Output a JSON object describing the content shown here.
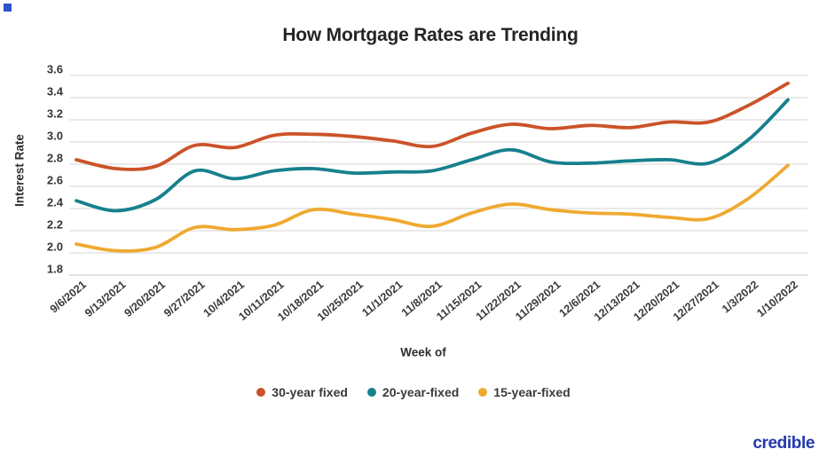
{
  "page": {
    "logo_text": "credible",
    "accent_square_color": "#2d52cc",
    "logo_color": "#2138b0",
    "background_color": "#ffffff"
  },
  "chart_data": {
    "type": "line",
    "title": "How Mortgage Rates are Trending",
    "xlabel": "Week of",
    "ylabel": "Interest Rate",
    "ylim": [
      1.8,
      3.6
    ],
    "ytick_step": 0.2,
    "ytick_labels": [
      "3.6",
      "3.4",
      "3.2",
      "3.0",
      "2.8",
      "2.6",
      "2.4",
      "2.2",
      "2.0",
      "1.8"
    ],
    "grid": true,
    "grid_color": "#dedede",
    "legend_position": "bottom",
    "categories": [
      "9/6/2021",
      "9/13/2021",
      "9/20/2021",
      "9/27/2021",
      "10/4/2021",
      "10/11/2021",
      "10/18/2021",
      "10/25/2021",
      "11/1/2021",
      "11/8/2021",
      "11/15/2021",
      "11/22/2021",
      "11/29/2021",
      "12/6/2021",
      "12/13/2021",
      "12/20/2021",
      "12/27/2021",
      "1/3/2022",
      "1/10/2022"
    ],
    "series": [
      {
        "name": "30-year fixed",
        "color": "#cb5329",
        "values": [
          2.84,
          2.76,
          2.78,
          2.97,
          2.95,
          3.06,
          3.07,
          3.05,
          3.01,
          2.96,
          3.08,
          3.16,
          3.12,
          3.15,
          3.13,
          3.18,
          3.18,
          3.33,
          3.53
        ]
      },
      {
        "name": "20-year-fixed",
        "color": "#17808d",
        "values": [
          2.47,
          2.38,
          2.48,
          2.74,
          2.67,
          2.74,
          2.76,
          2.72,
          2.73,
          2.74,
          2.84,
          2.93,
          2.82,
          2.81,
          2.83,
          2.84,
          2.81,
          3.02,
          3.38
        ]
      },
      {
        "name": "15-year-fixed",
        "color": "#efa931",
        "values": [
          2.08,
          2.02,
          2.05,
          2.23,
          2.21,
          2.25,
          2.39,
          2.35,
          2.3,
          2.24,
          2.36,
          2.44,
          2.39,
          2.36,
          2.35,
          2.32,
          2.31,
          2.49,
          2.79
        ]
      }
    ]
  }
}
